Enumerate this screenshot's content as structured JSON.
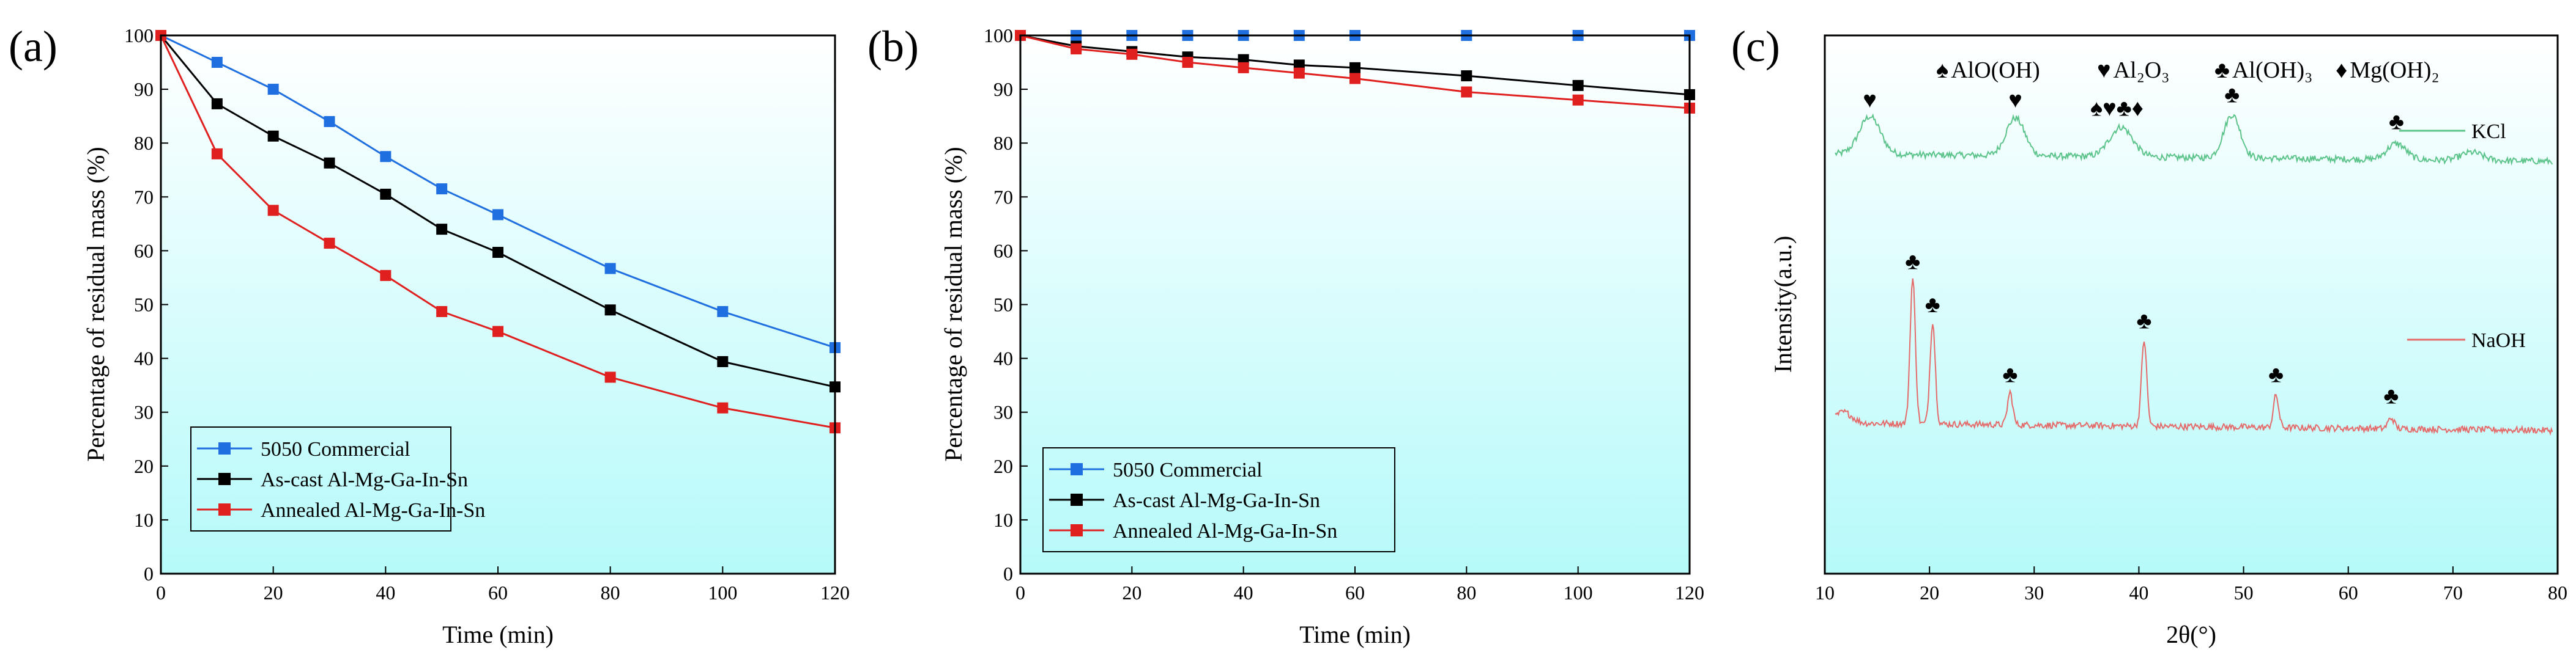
{
  "chart_data": [
    {
      "panel": "(a)",
      "type": "line",
      "xlabel": "Time (min)",
      "ylabel": "Percentage of residual mass (%)",
      "xlim": [
        0,
        120
      ],
      "ylim": [
        0,
        100
      ],
      "xticks": [
        0,
        20,
        40,
        60,
        80,
        100,
        120
      ],
      "yticks": [
        0,
        10,
        20,
        30,
        40,
        50,
        60,
        70,
        80,
        90,
        100
      ],
      "legend_position": "bottom-left",
      "series": [
        {
          "name": "5050 Commercial",
          "color": "#1f6fe0",
          "x": [
            0,
            10,
            20,
            30,
            40,
            50,
            60,
            80,
            100,
            120
          ],
          "values": [
            100,
            95,
            90,
            84,
            77.5,
            71.5,
            66.7,
            56.7,
            48.7,
            42
          ]
        },
        {
          "name": "As-cast Al-Mg-Ga-In-Sn",
          "color": "#000000",
          "x": [
            0,
            10,
            20,
            30,
            40,
            50,
            60,
            80,
            100,
            120
          ],
          "values": [
            100,
            87.3,
            81.3,
            76.3,
            70.5,
            64,
            59.7,
            49,
            39.4,
            34.7
          ]
        },
        {
          "name": "Annealed Al-Mg-Ga-In-Sn",
          "color": "#e01f1f",
          "x": [
            0,
            10,
            20,
            30,
            40,
            50,
            60,
            80,
            100,
            120
          ],
          "values": [
            100,
            78,
            67.5,
            61.4,
            55.4,
            48.7,
            45,
            36.5,
            30.8,
            27.1
          ]
        }
      ]
    },
    {
      "panel": "(b)",
      "type": "line",
      "xlabel": "Time (min)",
      "ylabel": "Percentage of residual mass (%)",
      "xlim": [
        0,
        120
      ],
      "ylim": [
        0,
        100
      ],
      "xticks": [
        0,
        20,
        40,
        60,
        80,
        100,
        120
      ],
      "yticks": [
        0,
        10,
        20,
        30,
        40,
        50,
        60,
        70,
        80,
        90,
        100
      ],
      "legend_position": "bottom-left",
      "series": [
        {
          "name": "5050 Commercial",
          "color": "#1f6fe0",
          "x": [
            0,
            10,
            20,
            30,
            40,
            50,
            60,
            80,
            100,
            120
          ],
          "values": [
            100,
            100,
            100,
            100,
            100,
            100,
            100,
            100,
            100,
            100
          ]
        },
        {
          "name": "As-cast Al-Mg-Ga-In-Sn",
          "color": "#000000",
          "x": [
            0,
            10,
            20,
            30,
            40,
            50,
            60,
            80,
            100,
            120
          ],
          "values": [
            100,
            98,
            97,
            96,
            95.5,
            94.5,
            94,
            92.5,
            90.7,
            89
          ]
        },
        {
          "name": "Annealed Al-Mg-Ga-In-Sn",
          "color": "#e01f1f",
          "x": [
            0,
            10,
            20,
            30,
            40,
            50,
            60,
            80,
            100,
            120
          ],
          "values": [
            100,
            97.5,
            96.5,
            95,
            94,
            93,
            92,
            89.5,
            88,
            86.5
          ]
        }
      ]
    },
    {
      "panel": "(c)",
      "type": "line",
      "xlabel": "2θ(°)",
      "ylabel": "Intensity(a.u.)",
      "xlim": [
        10,
        80
      ],
      "xticks": [
        10,
        20,
        30,
        40,
        50,
        60,
        70,
        80
      ],
      "legend_symbols": [
        {
          "symbol": "♠",
          "label": "AlO(OH)"
        },
        {
          "symbol": "♥",
          "label": "Al₂O₃"
        },
        {
          "symbol": "♣",
          "label": "Al(OH)₃"
        },
        {
          "symbol": "♦",
          "label": "Mg(OH)₂"
        }
      ],
      "series": [
        {
          "name": "KCl",
          "color": "#5cc48a",
          "baseline": 0.78,
          "peaks": [
            {
              "x": 14.3,
              "height": 0.07,
              "width": 1.0
            },
            {
              "x": 28.2,
              "height": 0.07,
              "width": 0.9
            },
            {
              "x": 38.3,
              "height": 0.055,
              "width": 1.1
            },
            {
              "x": 48.9,
              "height": 0.08,
              "width": 0.8
            },
            {
              "x": 64.6,
              "height": 0.03,
              "width": 0.9
            },
            {
              "x": 71.8,
              "height": 0.015,
              "width": 1.0
            }
          ],
          "annotations": [
            {
              "x": 14.3,
              "symbols": "♥"
            },
            {
              "x": 28.2,
              "symbols": "♥"
            },
            {
              "x": 37.9,
              "symbols": "♠♥♣♦"
            },
            {
              "x": 48.9,
              "symbols": "♣"
            },
            {
              "x": 64.6,
              "symbols": "♣"
            }
          ]
        },
        {
          "name": "NaOH",
          "color": "#e56a6a",
          "baseline": 0.28,
          "peaks": [
            {
              "x": 11.8,
              "height": 0.02,
              "width": 0.8
            },
            {
              "x": 18.4,
              "height": 0.27,
              "width": 0.25
            },
            {
              "x": 20.3,
              "height": 0.19,
              "width": 0.25
            },
            {
              "x": 27.7,
              "height": 0.06,
              "width": 0.25
            },
            {
              "x": 40.5,
              "height": 0.16,
              "width": 0.25
            },
            {
              "x": 53.1,
              "height": 0.06,
              "width": 0.25
            },
            {
              "x": 64.1,
              "height": 0.02,
              "width": 0.3
            }
          ],
          "annotations": [
            {
              "x": 18.4,
              "symbols": "♣"
            },
            {
              "x": 20.3,
              "symbols": "♣"
            },
            {
              "x": 27.7,
              "symbols": "♣"
            },
            {
              "x": 40.5,
              "symbols": "♣"
            },
            {
              "x": 53.1,
              "symbols": "♣"
            },
            {
              "x": 64.1,
              "symbols": "♣"
            }
          ]
        }
      ]
    }
  ]
}
